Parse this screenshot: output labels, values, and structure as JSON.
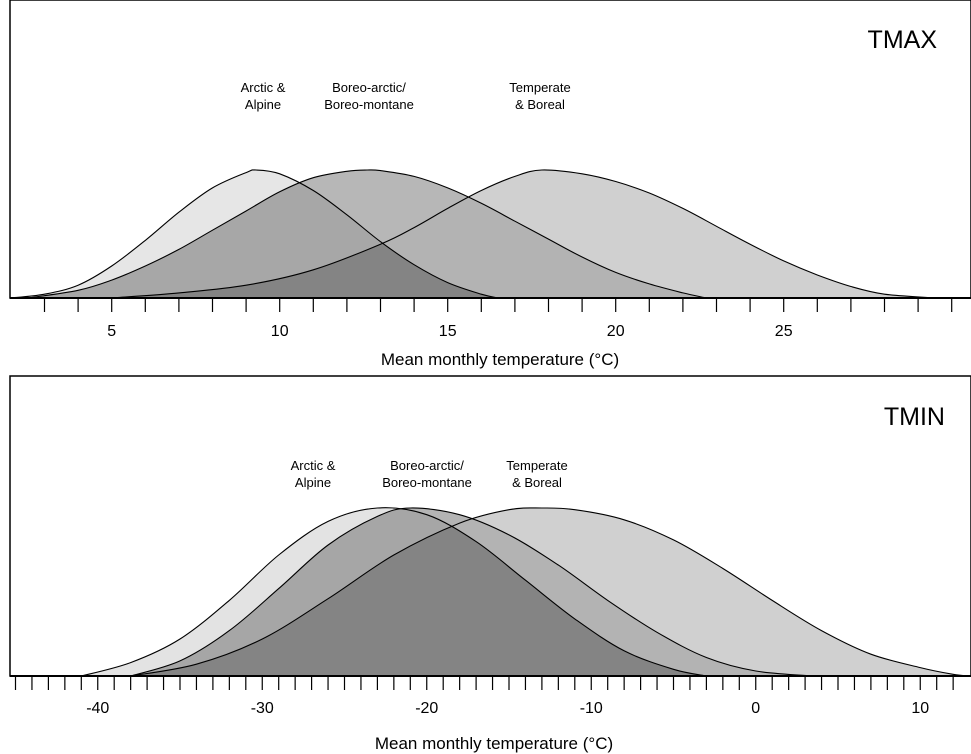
{
  "chart_data": [
    {
      "type": "area",
      "title": "TMAX",
      "xlabel": "Mean monthly temperature (°C)",
      "ylabel": "",
      "xlim": [
        1,
        30.5
      ],
      "x_ticks": [
        5,
        10,
        15,
        20,
        25
      ],
      "x_minor_step": 1,
      "grid": false,
      "legend": "labels above curves",
      "series": [
        {
          "name": "Arctic & Alpine",
          "name_lines": [
            "Arctic &",
            "Alpine"
          ],
          "fill": "#e6e6e6",
          "points": [
            [
              2.0,
              0.0
            ],
            [
              3.0,
              0.03
            ],
            [
              4.0,
              0.1
            ],
            [
              5.0,
              0.25
            ],
            [
              6.0,
              0.45
            ],
            [
              7.0,
              0.67
            ],
            [
              8.0,
              0.86
            ],
            [
              9.0,
              0.98
            ],
            [
              9.3,
              1.0
            ],
            [
              10.0,
              0.97
            ],
            [
              11.0,
              0.84
            ],
            [
              12.0,
              0.65
            ],
            [
              13.0,
              0.44
            ],
            [
              14.0,
              0.26
            ],
            [
              15.0,
              0.12
            ],
            [
              16.0,
              0.03
            ],
            [
              16.5,
              0.0
            ]
          ]
        },
        {
          "name": "Boreo-arctic/ Boreo-montane",
          "name_lines": [
            "Boreo-arctic/",
            "Boreo-montane"
          ],
          "fill": "#b7b7b7",
          "points": [
            [
              2.5,
              0.0
            ],
            [
              4.0,
              0.06
            ],
            [
              5.0,
              0.14
            ],
            [
              6.0,
              0.25
            ],
            [
              7.0,
              0.38
            ],
            [
              8.0,
              0.53
            ],
            [
              9.0,
              0.68
            ],
            [
              10.0,
              0.83
            ],
            [
              11.0,
              0.94
            ],
            [
              12.0,
              0.99
            ],
            [
              12.6,
              1.0
            ],
            [
              13.0,
              0.995
            ],
            [
              14.0,
              0.95
            ],
            [
              15.0,
              0.86
            ],
            [
              16.0,
              0.74
            ],
            [
              17.0,
              0.6
            ],
            [
              18.0,
              0.46
            ],
            [
              19.0,
              0.32
            ],
            [
              20.0,
              0.2
            ],
            [
              21.0,
              0.11
            ],
            [
              22.0,
              0.04
            ],
            [
              22.7,
              0.0
            ]
          ]
        },
        {
          "name": "Temperate & Boreal",
          "name_lines": [
            "Temperate",
            "& Boreal"
          ],
          "fill": "#d0d0d0",
          "points": [
            [
              5.0,
              0.0
            ],
            [
              7.0,
              0.04
            ],
            [
              9.0,
              0.1
            ],
            [
              11.0,
              0.22
            ],
            [
              13.0,
              0.42
            ],
            [
              14.0,
              0.55
            ],
            [
              15.0,
              0.7
            ],
            [
              16.0,
              0.84
            ],
            [
              17.0,
              0.95
            ],
            [
              17.8,
              1.0
            ],
            [
              19.0,
              0.97
            ],
            [
              20.0,
              0.91
            ],
            [
              21.0,
              0.82
            ],
            [
              22.0,
              0.7
            ],
            [
              23.0,
              0.56
            ],
            [
              24.0,
              0.42
            ],
            [
              25.0,
              0.29
            ],
            [
              26.0,
              0.18
            ],
            [
              27.0,
              0.09
            ],
            [
              28.0,
              0.03
            ],
            [
              29.5,
              0.0
            ]
          ]
        }
      ]
    },
    {
      "type": "area",
      "title": "TMIN",
      "xlabel": "Mean monthly temperature (°C)",
      "ylabel": "",
      "xlim": [
        -45.5,
        14
      ],
      "x_ticks": [
        -40,
        -30,
        -20,
        -10,
        0,
        10
      ],
      "x_minor_step": 1,
      "grid": false,
      "legend": "labels above curves",
      "series": [
        {
          "name": "Arctic & Alpine",
          "name_lines": [
            "Arctic &",
            "Alpine"
          ],
          "fill": "#e3e3e3",
          "points": [
            [
              -41.0,
              0.0
            ],
            [
              -38.0,
              0.08
            ],
            [
              -35.0,
              0.22
            ],
            [
              -32.0,
              0.45
            ],
            [
              -29.0,
              0.72
            ],
            [
              -26.0,
              0.92
            ],
            [
              -23.0,
              1.0
            ],
            [
              -20.0,
              0.96
            ],
            [
              -17.0,
              0.8
            ],
            [
              -14.0,
              0.57
            ],
            [
              -11.0,
              0.34
            ],
            [
              -8.0,
              0.15
            ],
            [
              -5.0,
              0.04
            ],
            [
              -3.0,
              0.0
            ]
          ]
        },
        {
          "name": "Boreo-arctic/ Boreo-montane",
          "name_lines": [
            "Boreo-arctic/",
            "Boreo-montane"
          ],
          "fill": "#b4b4b4",
          "points": [
            [
              -38.0,
              0.0
            ],
            [
              -35.0,
              0.09
            ],
            [
              -32.0,
              0.27
            ],
            [
              -29.0,
              0.52
            ],
            [
              -26.0,
              0.78
            ],
            [
              -23.0,
              0.95
            ],
            [
              -21.0,
              1.0
            ],
            [
              -18.0,
              0.96
            ],
            [
              -15.0,
              0.84
            ],
            [
              -12.0,
              0.66
            ],
            [
              -9.0,
              0.45
            ],
            [
              -6.0,
              0.26
            ],
            [
              -3.0,
              0.11
            ],
            [
              0.0,
              0.03
            ],
            [
              3.5,
              0.0
            ]
          ]
        },
        {
          "name": "Temperate & Boreal",
          "name_lines": [
            "Temperate",
            "& Boreal"
          ],
          "fill": "#d0d0d0",
          "points": [
            [
              -38.0,
              0.0
            ],
            [
              -34.0,
              0.07
            ],
            [
              -30.0,
              0.22
            ],
            [
              -26.0,
              0.46
            ],
            [
              -22.0,
              0.72
            ],
            [
              -18.0,
              0.91
            ],
            [
              -15.0,
              0.99
            ],
            [
              -13.0,
              1.0
            ],
            [
              -11.0,
              0.99
            ],
            [
              -8.0,
              0.93
            ],
            [
              -5.0,
              0.81
            ],
            [
              -2.0,
              0.64
            ],
            [
              1.0,
              0.45
            ],
            [
              4.0,
              0.27
            ],
            [
              7.0,
              0.13
            ],
            [
              10.0,
              0.05
            ],
            [
              12.0,
              0.01
            ],
            [
              13.0,
              0.0
            ]
          ]
        }
      ]
    }
  ]
}
